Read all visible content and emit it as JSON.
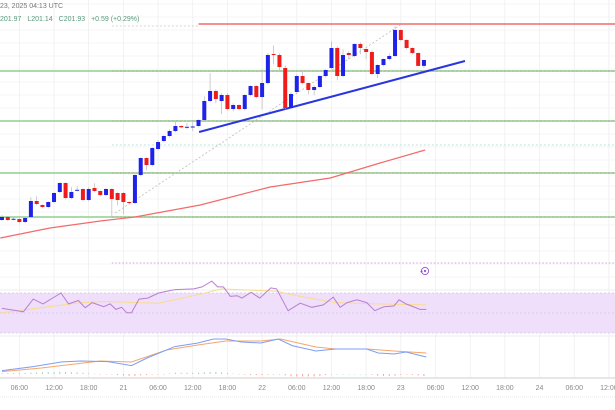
{
  "header": {
    "datetime": "23, 2025 04:13 UTC",
    "ohlc": {
      "high": "201.97",
      "low": "L201.14",
      "close": "C201.93",
      "change": "+0.59 (+0.29%)"
    }
  },
  "colors": {
    "up": "#1f22e8",
    "down": "#f01c1c",
    "ma": "#f26b6b",
    "trend": "#2a35e0",
    "resistance": "#f26b6b",
    "support": "#8fcf8f",
    "rsi": "#b77fd0",
    "rsi_ma": "#f8dc8c",
    "rsi_band": "#efdffb",
    "macd": "#7f9cf5",
    "signal": "#f5a66b"
  },
  "chart_data": {
    "type": "candlestick",
    "title": "",
    "timeframe_hours": 1,
    "x_axis": {
      "labels": [
        "06:00",
        "12:00",
        "18:00",
        "21",
        "06:00",
        "12:00",
        "18:00",
        "22",
        "06:00",
        "12:00",
        "18:00",
        "23",
        "06:00",
        "12:00",
        "18:00",
        "24",
        "06:00",
        "12:00"
      ],
      "first_label_candle_index": 3,
      "candles_per_label": 6
    },
    "price_range": [
      180.0,
      208.0
    ],
    "candles_ohlc": [
      [
        185.93,
        186.43,
        185.83,
        186.23
      ],
      [
        186.23,
        186.33,
        185.83,
        185.93
      ],
      [
        186.0,
        186.2,
        185.9,
        186.05
      ],
      [
        186.03,
        186.1,
        185.6,
        185.73
      ],
      [
        185.73,
        186.2,
        185.6,
        186.13
      ],
      [
        186.23,
        188.2,
        186.1,
        187.83
      ],
      [
        187.83,
        188.3,
        187.4,
        187.53
      ],
      [
        187.43,
        187.5,
        187.1,
        187.23
      ],
      [
        187.23,
        187.8,
        187.1,
        187.73
      ],
      [
        187.73,
        188.7,
        187.6,
        188.63
      ],
      [
        188.73,
        189.7,
        188.6,
        189.63
      ],
      [
        189.63,
        189.7,
        188.0,
        188.13
      ],
      [
        188.13,
        189.2,
        188.0,
        188.73
      ],
      [
        188.9,
        189.3,
        188.8,
        188.95
      ],
      [
        189.03,
        189.1,
        187.8,
        187.93
      ],
      [
        187.93,
        189.2,
        187.8,
        189.03
      ],
      [
        189.13,
        189.6,
        188.7,
        188.83
      ],
      [
        188.83,
        188.9,
        188.3,
        188.43
      ],
      [
        188.43,
        189.1,
        188.3,
        189.03
      ],
      [
        189.03,
        189.1,
        186.23,
        188.03
      ],
      [
        188.63,
        188.7,
        187.4,
        187.93
      ],
      [
        188.63,
        188.7,
        186.5,
        187.73
      ],
      [
        187.73,
        187.8,
        187.5,
        187.63
      ],
      [
        187.63,
        190.5,
        187.5,
        190.43
      ],
      [
        190.43,
        192.2,
        190.3,
        192.13
      ],
      [
        192.13,
        192.2,
        190.9,
        191.43
      ],
      [
        191.43,
        193.2,
        191.3,
        193.13
      ],
      [
        193.03,
        193.9,
        192.9,
        193.73
      ],
      [
        193.83,
        194.4,
        193.7,
        194.33
      ],
      [
        194.33,
        195.0,
        194.2,
        194.83
      ],
      [
        194.83,
        195.8,
        194.7,
        195.33
      ],
      [
        195.33,
        195.4,
        195.1,
        195.2
      ],
      [
        195.2,
        195.6,
        195.0,
        195.25
      ],
      [
        195.2,
        195.7,
        194.8,
        195.28
      ],
      [
        195.33,
        196.0,
        195.2,
        195.93
      ],
      [
        195.93,
        198.3,
        195.8,
        197.83
      ],
      [
        197.83,
        200.6,
        197.7,
        198.83
      ],
      [
        198.83,
        199.0,
        197.6,
        198.03
      ],
      [
        197.83,
        198.6,
        196.5,
        198.43
      ],
      [
        198.43,
        198.6,
        196.9,
        197.03
      ],
      [
        197.03,
        197.6,
        196.8,
        197.43
      ],
      [
        197.43,
        197.5,
        196.9,
        197.03
      ],
      [
        197.03,
        198.5,
        196.9,
        198.43
      ],
      [
        198.43,
        199.4,
        198.3,
        199.33
      ],
      [
        199.33,
        199.4,
        198.1,
        198.23
      ],
      [
        198.23,
        201.0,
        197.0,
        199.63
      ],
      [
        199.63,
        202.6,
        199.5,
        202.43
      ],
      [
        202.53,
        203.4,
        201.5,
        202.43
      ],
      [
        202.43,
        202.6,
        200.9,
        201.23
      ],
      [
        201.13,
        201.4,
        197.0,
        197.13
      ],
      [
        197.13,
        198.7,
        197.0,
        198.53
      ],
      [
        198.73,
        200.5,
        198.6,
        200.33
      ],
      [
        200.33,
        200.9,
        199.5,
        199.63
      ],
      [
        199.63,
        199.7,
        198.5,
        198.93
      ],
      [
        198.93,
        199.4,
        198.4,
        199.23
      ],
      [
        199.23,
        200.4,
        199.1,
        200.33
      ],
      [
        200.33,
        201.0,
        200.2,
        200.93
      ],
      [
        201.13,
        203.8,
        201.0,
        203.13
      ],
      [
        203.13,
        203.3,
        199.9,
        200.33
      ],
      [
        200.33,
        203.0,
        200.2,
        202.43
      ],
      [
        202.63,
        202.8,
        202.0,
        202.43
      ],
      [
        202.33,
        203.6,
        202.2,
        203.53
      ],
      [
        203.53,
        203.7,
        202.5,
        203.13
      ],
      [
        203.03,
        203.1,
        202.0,
        202.73
      ],
      [
        202.73,
        202.9,
        200.4,
        200.53
      ],
      [
        200.53,
        201.5,
        200.1,
        201.43
      ],
      [
        201.43,
        202.1,
        201.3,
        202.03
      ],
      [
        202.03,
        202.6,
        201.9,
        202.33
      ],
      [
        202.33,
        205.3,
        202.2,
        204.93
      ],
      [
        204.93,
        205.0,
        203.8,
        203.93
      ],
      [
        203.93,
        204.0,
        203.0,
        203.13
      ],
      [
        203.13,
        203.2,
        202.5,
        202.63
      ],
      [
        202.63,
        202.7,
        201.3,
        201.34
      ],
      [
        201.34,
        201.97,
        201.14,
        201.93
      ]
    ],
    "horizontal_levels": [
      {
        "name": "resistance",
        "price": 205.53,
        "from_index": 34
      },
      {
        "name": "support-1",
        "price": 200.83,
        "from_index": -1
      },
      {
        "name": "support-2",
        "price": 195.83,
        "from_index": -1
      },
      {
        "name": "support-3",
        "price": 190.63,
        "from_index": -1
      },
      {
        "name": "support-4",
        "price": 186.23,
        "from_index": -1
      }
    ],
    "trendline": [
      [
        34.1,
        194.73
      ],
      [
        80.1,
        201.83
      ]
    ],
    "projection_line": [
      [
        19.6,
        186.63
      ],
      [
        68.9,
        205.43
      ]
    ],
    "moving_average": [
      [
        -0.3,
        184.13
      ],
      [
        8.3,
        185.13
      ],
      [
        17,
        185.83
      ],
      [
        23,
        186.23
      ],
      [
        34.3,
        187.43
      ],
      [
        46.4,
        189.23
      ],
      [
        56.8,
        190.13
      ],
      [
        65.4,
        191.63
      ],
      [
        73.2,
        192.93
      ]
    ],
    "rsi": {
      "band": [
        30,
        70
      ],
      "values": [
        [
          0,
          54.6
        ],
        [
          2,
          52.9
        ],
        [
          3.7,
          51.2
        ],
        [
          5.4,
          63.9
        ],
        [
          7.1,
          59.1
        ],
        [
          10.2,
          70
        ],
        [
          11.5,
          59.1
        ],
        [
          13.2,
          62.5
        ],
        [
          14.4,
          55.3
        ],
        [
          15.6,
          60.4
        ],
        [
          17.6,
          56.3
        ],
        [
          18.7,
          59.1
        ],
        [
          19.7,
          53.6
        ],
        [
          20.7,
          55.7
        ],
        [
          21.6,
          50.2
        ],
        [
          22.4,
          50.2
        ],
        [
          23.7,
          63.9
        ],
        [
          25.2,
          64.9
        ],
        [
          27.1,
          70
        ],
        [
          29.9,
          73.4
        ],
        [
          33.2,
          74.1
        ],
        [
          34.6,
          76.1
        ],
        [
          36.3,
          81.9
        ],
        [
          37.3,
          76.1
        ],
        [
          38.3,
          76.1
        ],
        [
          39.5,
          66.6
        ],
        [
          40.7,
          67.3
        ],
        [
          41.5,
          64.9
        ],
        [
          43.1,
          70.7
        ],
        [
          44.6,
          64.9
        ],
        [
          46.5,
          75.1
        ],
        [
          47.5,
          74.1
        ],
        [
          49.5,
          52.3
        ],
        [
          51.6,
          59.8
        ],
        [
          53.6,
          55.7
        ],
        [
          55.6,
          58.1
        ],
        [
          57.3,
          65.9
        ],
        [
          58.5,
          55.7
        ],
        [
          59.7,
          60.4
        ],
        [
          61.4,
          63.2
        ],
        [
          63.1,
          60.4
        ],
        [
          64.5,
          52.3
        ],
        [
          66.1,
          56.3
        ],
        [
          67.8,
          57.0
        ],
        [
          68.7,
          63.2
        ],
        [
          69.9,
          59.1
        ],
        [
          72.3,
          53.6
        ],
        [
          73.4,
          53.6
        ]
      ],
      "ma": [
        [
          0,
          50.2
        ],
        [
          13.6,
          60.4
        ],
        [
          17.6,
          61.5
        ],
        [
          27.1,
          59.8
        ],
        [
          33.9,
          68.3
        ],
        [
          38,
          74.1
        ],
        [
          47.5,
          71.7
        ],
        [
          51.6,
          66.6
        ],
        [
          57.7,
          60.4
        ],
        [
          64.5,
          59.1
        ],
        [
          73.4,
          58.1
        ]
      ]
    },
    "macd": {
      "macd": [
        [
          0,
          0.07
        ],
        [
          5.4,
          0.27
        ],
        [
          10.2,
          0.5
        ],
        [
          13.6,
          0.55
        ],
        [
          18.3,
          0.52
        ],
        [
          22.4,
          0.32
        ],
        [
          25.1,
          0.7
        ],
        [
          29.9,
          1.27
        ],
        [
          33.9,
          1.45
        ],
        [
          36.6,
          1.65
        ],
        [
          38.7,
          1.65
        ],
        [
          41.4,
          1.5
        ],
        [
          44.8,
          1.45
        ],
        [
          47.8,
          1.65
        ],
        [
          50.2,
          1.32
        ],
        [
          54.3,
          1.05
        ],
        [
          57.7,
          1.15
        ],
        [
          61.4,
          1.15
        ],
        [
          63.1,
          1.15
        ],
        [
          65.1,
          0.95
        ],
        [
          67.8,
          0.9
        ],
        [
          69.9,
          1.0
        ],
        [
          73.4,
          0.75
        ]
      ],
      "signal": [
        [
          0,
          0.02
        ],
        [
          6.8,
          0.2
        ],
        [
          17,
          0.55
        ],
        [
          22.4,
          0.5
        ],
        [
          28.5,
          1.1
        ],
        [
          33.9,
          1.35
        ],
        [
          38.7,
          1.55
        ],
        [
          44.8,
          1.55
        ],
        [
          48.2,
          1.65
        ],
        [
          54.3,
          1.25
        ],
        [
          57.7,
          1.15
        ],
        [
          63.1,
          1.15
        ],
        [
          67.8,
          1.05
        ],
        [
          73.4,
          0.95
        ]
      ]
    }
  }
}
